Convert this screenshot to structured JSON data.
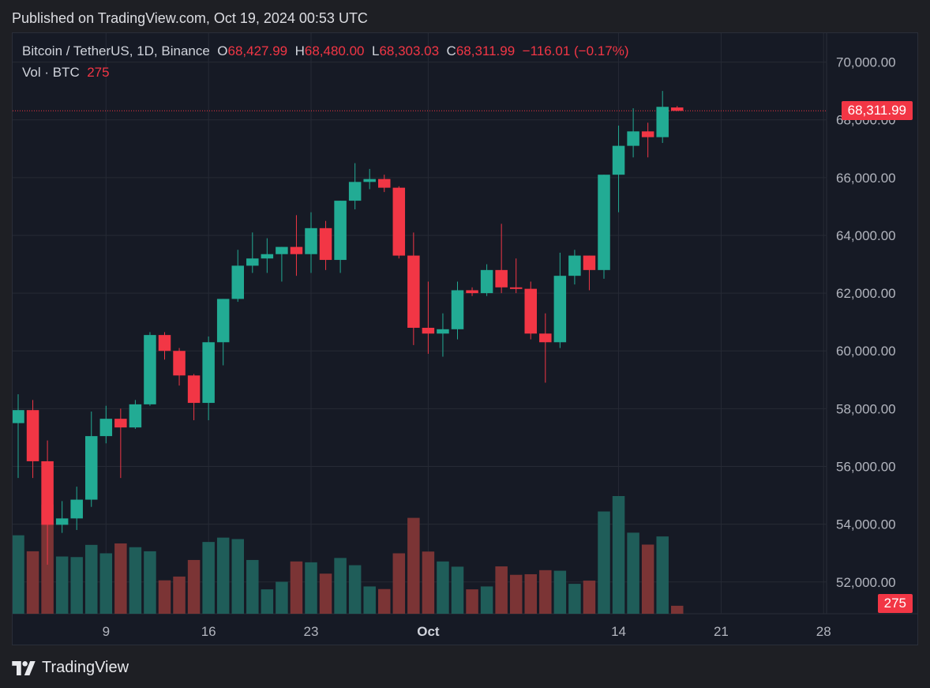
{
  "header": {
    "published": "Published on TradingView.com, Oct 19, 2024 00:53 UTC"
  },
  "legend": {
    "symbol": "Bitcoin / TetherUS, 1D, Binance",
    "o_label": "O",
    "o": "68,427.99",
    "h_label": "H",
    "h": "68,480.00",
    "l_label": "L",
    "l": "68,303.03",
    "c_label": "C",
    "c": "68,311.99",
    "change": "−116.01 (−0.17%)",
    "vol_label": "Vol · BTC",
    "vol": "275"
  },
  "tags": {
    "price": "68,311.99",
    "volume": "275"
  },
  "footer": {
    "brand": "TradingView",
    "logo_icon": "tradingview-logo-icon"
  },
  "colors": {
    "up": "#22ab94",
    "down": "#f23645",
    "vol_up": "#1f5d59",
    "vol_down": "#7b3435",
    "grid": "#262a35",
    "axis_text": "#b2b5be"
  },
  "chart_data": {
    "type": "candlestick",
    "ylim": [
      50900,
      71000
    ],
    "yticks": [
      "70,000.00",
      "68,000.00",
      "66,000.00",
      "64,000.00",
      "62,000.00",
      "60,000.00",
      "58,000.00",
      "56,000.00",
      "54,000.00",
      "52,000.00"
    ],
    "ytick_values": [
      70000,
      68000,
      66000,
      64000,
      62000,
      60000,
      58000,
      56000,
      54000,
      52000
    ],
    "xticks": [
      {
        "label": "9",
        "date": "2024-09-09"
      },
      {
        "label": "16",
        "date": "2024-09-16"
      },
      {
        "label": "23",
        "date": "2024-09-23"
      },
      {
        "label": "Oct",
        "date": "2024-10-01"
      },
      {
        "label": "14",
        "date": "2024-10-14"
      },
      {
        "label": "21",
        "date": "2024-10-21"
      },
      {
        "label": "28",
        "date": "2024-10-28"
      }
    ],
    "candles": [
      {
        "date": "2024-09-03",
        "o": 57500,
        "h": 58500,
        "l": 55600,
        "c": 57950,
        "v": 2700
      },
      {
        "date": "2024-09-04",
        "o": 57950,
        "h": 58300,
        "l": 55600,
        "c": 56180,
        "v": 2150
      },
      {
        "date": "2024-09-05",
        "o": 56180,
        "h": 56900,
        "l": 52600,
        "c": 53980,
        "v": 3760
      },
      {
        "date": "2024-09-06",
        "o": 53980,
        "h": 54800,
        "l": 53700,
        "c": 54200,
        "v": 1970
      },
      {
        "date": "2024-09-07",
        "o": 54200,
        "h": 55300,
        "l": 53800,
        "c": 54850,
        "v": 1950
      },
      {
        "date": "2024-09-08",
        "o": 54850,
        "h": 57900,
        "l": 54600,
        "c": 57050,
        "v": 2370
      },
      {
        "date": "2024-09-09",
        "o": 57050,
        "h": 58100,
        "l": 56800,
        "c": 57650,
        "v": 2080
      },
      {
        "date": "2024-09-10",
        "o": 57650,
        "h": 58000,
        "l": 55600,
        "c": 57350,
        "v": 2420
      },
      {
        "date": "2024-09-11",
        "o": 57350,
        "h": 58300,
        "l": 57300,
        "c": 58150,
        "v": 2290
      },
      {
        "date": "2024-09-12",
        "o": 58150,
        "h": 60650,
        "l": 58100,
        "c": 60550,
        "v": 2150
      },
      {
        "date": "2024-09-13",
        "o": 60550,
        "h": 60650,
        "l": 59700,
        "c": 60000,
        "v": 1150
      },
      {
        "date": "2024-09-14",
        "o": 60000,
        "h": 60100,
        "l": 58800,
        "c": 59150,
        "v": 1280
      },
      {
        "date": "2024-09-15",
        "o": 59150,
        "h": 59200,
        "l": 57600,
        "c": 58200,
        "v": 1850
      },
      {
        "date": "2024-09-16",
        "o": 58200,
        "h": 60500,
        "l": 57600,
        "c": 60300,
        "v": 2470
      },
      {
        "date": "2024-09-17",
        "o": 60300,
        "h": 61800,
        "l": 59500,
        "c": 61800,
        "v": 2620
      },
      {
        "date": "2024-09-18",
        "o": 61800,
        "h": 63500,
        "l": 61700,
        "c": 62950,
        "v": 2570
      },
      {
        "date": "2024-09-19",
        "o": 62950,
        "h": 64100,
        "l": 62700,
        "c": 63200,
        "v": 1850
      },
      {
        "date": "2024-09-20",
        "o": 63200,
        "h": 63900,
        "l": 62700,
        "c": 63350,
        "v": 840
      },
      {
        "date": "2024-09-21",
        "o": 63350,
        "h": 63600,
        "l": 62400,
        "c": 63600,
        "v": 1100
      },
      {
        "date": "2024-09-22",
        "o": 63600,
        "h": 64700,
        "l": 62600,
        "c": 63350,
        "v": 1800
      },
      {
        "date": "2024-09-23",
        "o": 63350,
        "h": 64800,
        "l": 62700,
        "c": 64250,
        "v": 1770
      },
      {
        "date": "2024-09-24",
        "o": 64250,
        "h": 64500,
        "l": 62800,
        "c": 63150,
        "v": 1380
      },
      {
        "date": "2024-09-25",
        "o": 63150,
        "h": 65200,
        "l": 62700,
        "c": 65200,
        "v": 1920
      },
      {
        "date": "2024-09-26",
        "o": 65200,
        "h": 66500,
        "l": 64900,
        "c": 65850,
        "v": 1670
      },
      {
        "date": "2024-09-27",
        "o": 65850,
        "h": 66300,
        "l": 65600,
        "c": 65950,
        "v": 940
      },
      {
        "date": "2024-09-28",
        "o": 65950,
        "h": 66100,
        "l": 65500,
        "c": 65650,
        "v": 850
      },
      {
        "date": "2024-09-29",
        "o": 65650,
        "h": 65700,
        "l": 63200,
        "c": 63300,
        "v": 2080
      },
      {
        "date": "2024-09-30",
        "o": 63300,
        "h": 64100,
        "l": 60200,
        "c": 60800,
        "v": 3300
      },
      {
        "date": "2024-10-01",
        "o": 60800,
        "h": 62400,
        "l": 59900,
        "c": 60600,
        "v": 2140
      },
      {
        "date": "2024-10-02",
        "o": 60600,
        "h": 61300,
        "l": 59800,
        "c": 60750,
        "v": 1800
      },
      {
        "date": "2024-10-03",
        "o": 60750,
        "h": 62400,
        "l": 60400,
        "c": 62100,
        "v": 1620
      },
      {
        "date": "2024-10-04",
        "o": 62100,
        "h": 62200,
        "l": 61900,
        "c": 62000,
        "v": 840
      },
      {
        "date": "2024-10-05",
        "o": 62000,
        "h": 63000,
        "l": 61900,
        "c": 62800,
        "v": 940
      },
      {
        "date": "2024-10-06",
        "o": 62800,
        "h": 64400,
        "l": 62000,
        "c": 62200,
        "v": 1630
      },
      {
        "date": "2024-10-07",
        "o": 62200,
        "h": 63200,
        "l": 62000,
        "c": 62150,
        "v": 1340
      },
      {
        "date": "2024-10-08",
        "o": 62150,
        "h": 62400,
        "l": 60400,
        "c": 60600,
        "v": 1360
      },
      {
        "date": "2024-10-09",
        "o": 60600,
        "h": 61300,
        "l": 58900,
        "c": 60300,
        "v": 1500
      },
      {
        "date": "2024-10-10",
        "o": 60300,
        "h": 63400,
        "l": 60100,
        "c": 62600,
        "v": 1480
      },
      {
        "date": "2024-10-11",
        "o": 62600,
        "h": 63500,
        "l": 62300,
        "c": 63300,
        "v": 1030
      },
      {
        "date": "2024-10-12",
        "o": 63300,
        "h": 63300,
        "l": 62100,
        "c": 62800,
        "v": 1140
      },
      {
        "date": "2024-10-13",
        "o": 62800,
        "h": 66100,
        "l": 62500,
        "c": 66100,
        "v": 3520
      },
      {
        "date": "2024-10-14",
        "o": 66100,
        "h": 67800,
        "l": 64800,
        "c": 67100,
        "v": 4050
      },
      {
        "date": "2024-10-15",
        "o": 67100,
        "h": 68400,
        "l": 66700,
        "c": 67600,
        "v": 2790
      },
      {
        "date": "2024-10-16",
        "o": 67600,
        "h": 67900,
        "l": 66700,
        "c": 67400,
        "v": 2380
      },
      {
        "date": "2024-10-17",
        "o": 67400,
        "h": 69000,
        "l": 67200,
        "c": 68450,
        "v": 2660
      },
      {
        "date": "2024-10-18",
        "o": 68427.99,
        "h": 68480.0,
        "l": 68303.03,
        "c": 68311.99,
        "v": 275
      }
    ],
    "last_price": 68311.99
  }
}
